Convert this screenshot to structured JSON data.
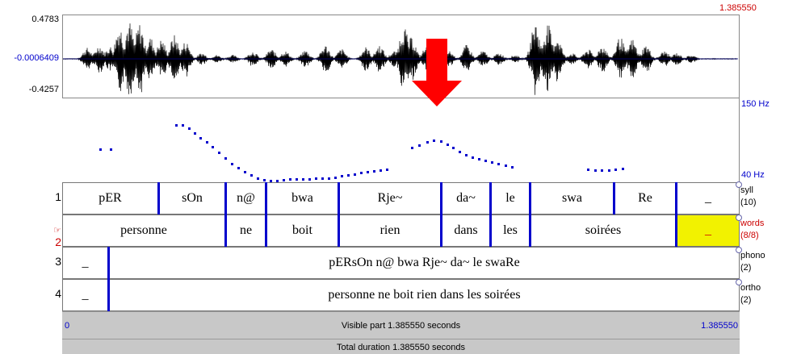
{
  "waveform": {
    "max": "0.4783",
    "mid": "-0.0006409",
    "min": "-0.4257"
  },
  "time": {
    "top_end": "1.385550",
    "visible_start": "0",
    "visible_end": "1.385550"
  },
  "pitch": {
    "top_label": "150 Hz",
    "bottom_label": "40 Hz"
  },
  "tiers": [
    {
      "num": "1",
      "name": "syll",
      "count": "(10)",
      "cells": [
        "pER",
        "sOn",
        "n@",
        "bwa",
        "Rje~",
        "da~",
        "le",
        "swa",
        "Re",
        "_"
      ]
    },
    {
      "num": "2",
      "name": "words",
      "count": "(8/8)",
      "active_marker": "☞",
      "cells": [
        "personne",
        "ne",
        "boit",
        "rien",
        "dans",
        "les",
        "soirées",
        "_"
      ]
    },
    {
      "num": "3",
      "name": "phono",
      "count": "(2)",
      "cells": [
        "_",
        "pERsOn n@ bwa Rje~ da~ le swaRe"
      ]
    },
    {
      "num": "4",
      "name": "ortho",
      "count": "(2)",
      "cells": [
        "_",
        "personne ne boit rien dans les soirées"
      ]
    }
  ],
  "status": {
    "visible_part": "Visible part 1.385550 seconds",
    "total_duration": "Total duration 1.385550 seconds"
  },
  "colors": {
    "boundary": "#0000cc",
    "selection": "#f2f200",
    "arrow": "#ff0000",
    "pitch_dots": "#0000cc"
  },
  "annotation": {
    "arrow_icon": "red-down-arrow"
  }
}
